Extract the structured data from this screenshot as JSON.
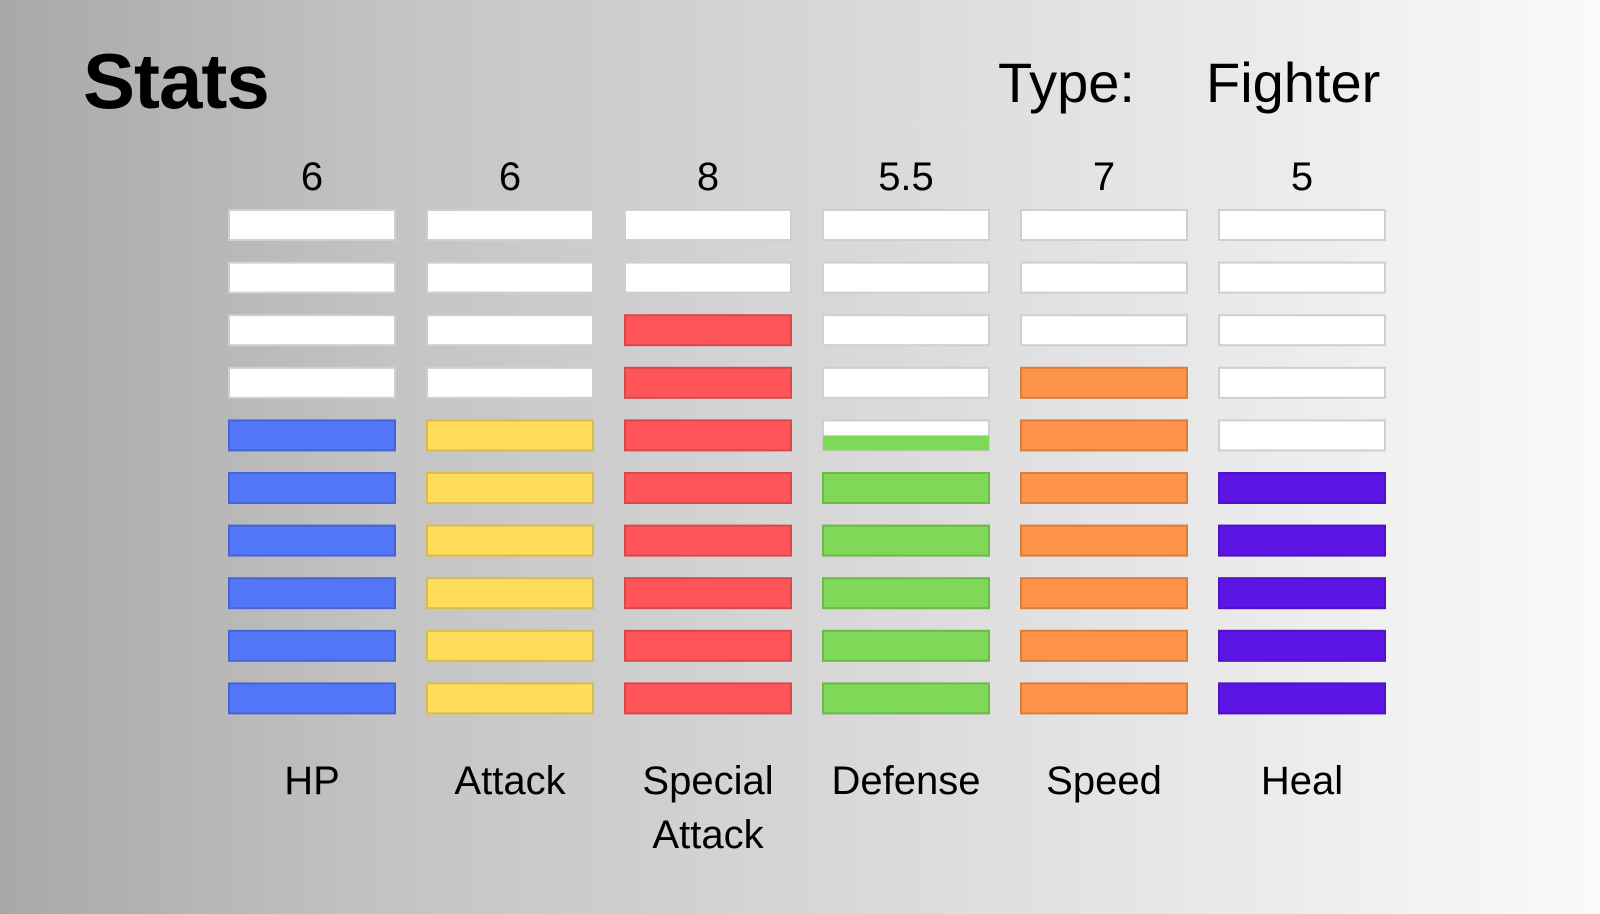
{
  "title": "Stats",
  "type_label": "Type:",
  "type_value": "Fighter",
  "chart_data": {
    "type": "bar",
    "max_value": 10,
    "segments_per_bar": 10,
    "categories": [
      {
        "name_lines": [
          "HP"
        ],
        "value": 6,
        "value_label": "6",
        "color": "#5276f8"
      },
      {
        "name_lines": [
          "Attack"
        ],
        "value": 6,
        "value_label": "6",
        "color": "#ffdc5c"
      },
      {
        "name_lines": [
          "Special",
          "Attack"
        ],
        "value": 8,
        "value_label": "8",
        "color": "#ff5559"
      },
      {
        "name_lines": [
          "Defense"
        ],
        "value": 5.5,
        "value_label": "5.5",
        "color": "#7fd857"
      },
      {
        "name_lines": [
          "Speed"
        ],
        "value": 7,
        "value_label": "7",
        "color": "#ff934a"
      },
      {
        "name_lines": [
          "Heal"
        ],
        "value": 5,
        "value_label": "5",
        "color": "#5d15e6"
      }
    ],
    "empty_segment_color": "#ffffff"
  }
}
